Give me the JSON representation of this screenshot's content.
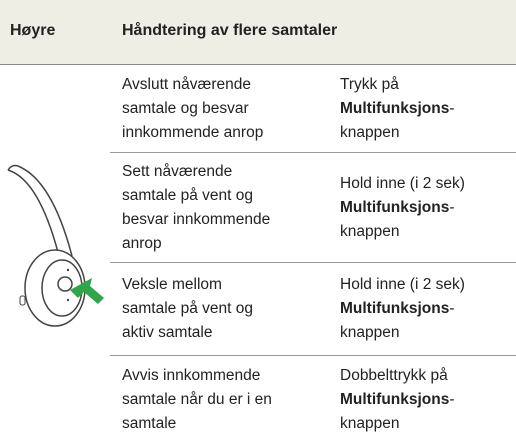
{
  "header": {
    "side": "Høyre",
    "title": "Håndtering av flere samtaler"
  },
  "rows": [
    {
      "action": [
        "Avslutt nåværende",
        "samtale og besvar",
        "innkommende anrop"
      ],
      "gesture": {
        "lead": "Trykk på",
        "bold": "Multifunksjons",
        "hyphen": "-",
        "tail": "knappen"
      }
    },
    {
      "action": [
        "Sett nåværende",
        "samtale på vent og",
        "besvar innkommende",
        "anrop"
      ],
      "gesture": {
        "lead": "Hold inne (i 2 sek)",
        "bold": "Multifunksjons",
        "hyphen": "-",
        "tail": "knappen"
      }
    },
    {
      "action": [
        "Veksle mellom",
        "samtale på vent og",
        "aktiv samtale"
      ],
      "gesture": {
        "lead": "Hold inne (i 2 sek)",
        "bold": "Multifunksjons",
        "hyphen": "-",
        "tail": "knappen"
      }
    },
    {
      "action": [
        "Avvis innkommende",
        "samtale når du er i en",
        "samtale"
      ],
      "gesture": {
        "lead": "Dobbelttrykk på",
        "bold": "Multifunksjons",
        "hyphen": "-",
        "tail": "knappen"
      }
    }
  ]
}
